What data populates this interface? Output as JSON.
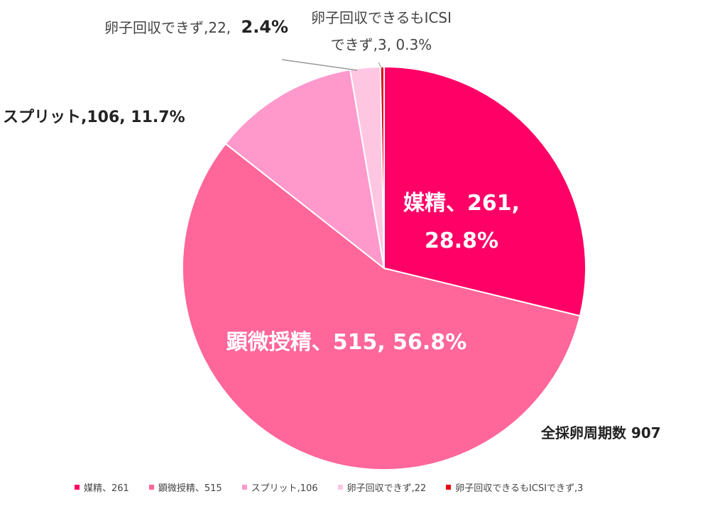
{
  "chart_data": {
    "type": "pie",
    "total_label": "全採卵周期数 907",
    "slices": [
      {
        "name": "媒精",
        "count": "261",
        "percent": "28.8%",
        "value": 28.8,
        "color": "#ff0066"
      },
      {
        "name": "顕微授精",
        "count": "515",
        "percent": "56.8%",
        "value": 56.8,
        "color": "#ff6699"
      },
      {
        "name": "スプリット",
        "count": "106",
        "percent": "11.7%",
        "value": 11.7,
        "color": "#ff99cc"
      },
      {
        "name": "卵子回収できず",
        "count": "22",
        "percent": "2.4%",
        "value": 2.4,
        "color": "#ffc6e2"
      },
      {
        "name": "卵子回収できるもICSIできず",
        "count": "3",
        "percent": "0.3%",
        "value": 0.3,
        "color": "#e60012"
      }
    ],
    "data_labels": {
      "s0_line1": "媒精、261,",
      "s0_line2": "28.8%",
      "s1": "顕微授精、515, 56.8%",
      "s2": "スプリット,106, 11.7%",
      "s3_text": "卵子回収できず,22,",
      "s3_pct": "2.4%",
      "s4_line1": "卵子回収できるもICSI",
      "s4_line2": "できず,3, 0.3%"
    },
    "legend": [
      "媒精、261",
      "顕微授精、515",
      "スプリット,106",
      "卵子回収できず,22",
      "卵子回収できるもICSIできず,3"
    ]
  }
}
